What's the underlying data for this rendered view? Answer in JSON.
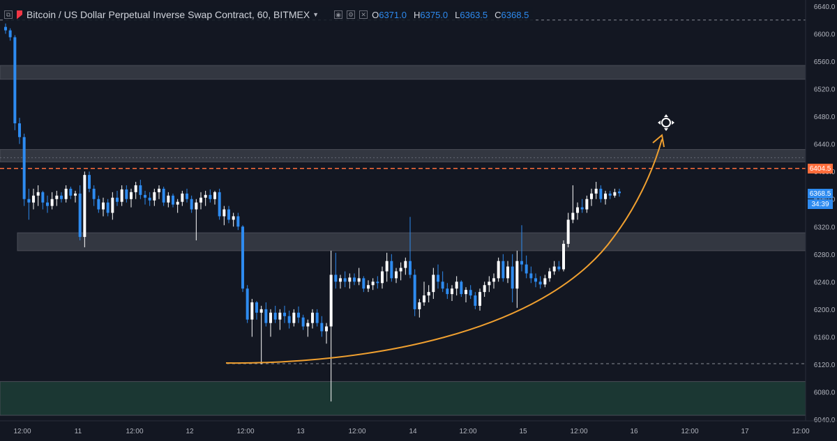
{
  "header": {
    "title": "Bitcoin / US Dollar Perpetual Inverse Swap Contract, 60, BITMEX",
    "ohlc": [
      {
        "key": "O",
        "value": "6371.0"
      },
      {
        "key": "H",
        "value": "6375.0"
      },
      {
        "key": "L",
        "value": "6363.5"
      },
      {
        "key": "C",
        "value": "6368.5"
      }
    ],
    "icons": [
      "collapse-icon",
      "flag-icon",
      "dropdown-caret-icon",
      "settings-icon",
      "eye-icon",
      "close-icon"
    ]
  },
  "price_labels": {
    "level_line": "6404.5",
    "last_price": "6368.5",
    "countdown": "34:39"
  },
  "colors": {
    "background": "#131722",
    "up": "#ffffff",
    "down": "#2e8bf0",
    "level_line": "#ff6d3b",
    "arrow": "#f0a030",
    "zone_gray": "#3a3d47",
    "zone_green": "#1d3d36"
  },
  "chart_data": {
    "type": "candlestick",
    "title": "",
    "xlabel": "",
    "ylabel": "",
    "ylim": [
      6040,
      6640
    ],
    "y_ticks": [
      "6640.0",
      "6600.0",
      "6560.0",
      "6520.0",
      "6480.0",
      "6440.0",
      "6400.0",
      "6360.0",
      "6320.0",
      "6280.0",
      "6240.0",
      "6200.0",
      "6160.0",
      "6120.0",
      "6080.0",
      "6040.0"
    ],
    "x_ticks": [
      "12:00",
      "11",
      "12:00",
      "12",
      "12:00",
      "13",
      "12:00",
      "14",
      "12:00",
      "15",
      "12:00",
      "16",
      "12:00",
      "17",
      "12:00"
    ],
    "grid": false,
    "zones": [
      {
        "from": 6534,
        "to": 6554,
        "kind": "resistance"
      },
      {
        "from": 6414,
        "to": 6432,
        "kind": "resistance"
      },
      {
        "from": 6285,
        "to": 6311,
        "kind": "support"
      },
      {
        "from": 6046,
        "to": 6095,
        "kind": "demand"
      }
    ],
    "dashed_levels": [
      6620,
      6404.5,
      6420,
      6121
    ],
    "candles": [
      [
        6610,
        6615,
        6600,
        6605
      ],
      [
        6605,
        6608,
        6590,
        6595
      ],
      [
        6595,
        6598,
        6460,
        6470
      ],
      [
        6470,
        6478,
        6440,
        6450
      ],
      [
        6450,
        6455,
        6350,
        6360
      ],
      [
        6360,
        6375,
        6330,
        6355
      ],
      [
        6355,
        6375,
        6345,
        6365
      ],
      [
        6365,
        6380,
        6350,
        6370
      ],
      [
        6370,
        6372,
        6345,
        6355
      ],
      [
        6355,
        6365,
        6340,
        6350
      ],
      [
        6350,
        6370,
        6345,
        6360
      ],
      [
        6360,
        6372,
        6350,
        6365
      ],
      [
        6365,
        6370,
        6355,
        6360
      ],
      [
        6360,
        6380,
        6355,
        6375
      ],
      [
        6375,
        6378,
        6360,
        6365
      ],
      [
        6365,
        6372,
        6355,
        6368
      ],
      [
        6368,
        6380,
        6300,
        6305
      ],
      [
        6305,
        6400,
        6290,
        6395
      ],
      [
        6395,
        6400,
        6370,
        6375
      ],
      [
        6375,
        6380,
        6350,
        6360
      ],
      [
        6360,
        6365,
        6340,
        6345
      ],
      [
        6345,
        6362,
        6335,
        6355
      ],
      [
        6355,
        6360,
        6335,
        6340
      ],
      [
        6340,
        6370,
        6330,
        6362
      ],
      [
        6362,
        6372,
        6350,
        6356
      ],
      [
        6356,
        6380,
        6350,
        6374
      ],
      [
        6374,
        6380,
        6355,
        6360
      ],
      [
        6360,
        6375,
        6348,
        6370
      ],
      [
        6370,
        6385,
        6360,
        6380
      ],
      [
        6380,
        6388,
        6360,
        6366
      ],
      [
        6366,
        6372,
        6352,
        6362
      ],
      [
        6362,
        6370,
        6350,
        6358
      ],
      [
        6358,
        6375,
        6350,
        6370
      ],
      [
        6370,
        6380,
        6360,
        6375
      ],
      [
        6375,
        6378,
        6350,
        6355
      ],
      [
        6355,
        6370,
        6348,
        6365
      ],
      [
        6365,
        6368,
        6348,
        6352
      ],
      [
        6352,
        6360,
        6340,
        6356
      ],
      [
        6356,
        6372,
        6350,
        6368
      ],
      [
        6368,
        6375,
        6355,
        6360
      ],
      [
        6360,
        6365,
        6340,
        6345
      ],
      [
        6345,
        6360,
        6300,
        6355
      ],
      [
        6355,
        6370,
        6345,
        6362
      ],
      [
        6362,
        6372,
        6350,
        6366
      ],
      [
        6366,
        6374,
        6355,
        6360
      ],
      [
        6360,
        6372,
        6352,
        6370
      ],
      [
        6370,
        6375,
        6330,
        6335
      ],
      [
        6335,
        6350,
        6322,
        6345
      ],
      [
        6345,
        6350,
        6325,
        6330
      ],
      [
        6330,
        6340,
        6320,
        6335
      ],
      [
        6335,
        6340,
        6315,
        6320
      ],
      [
        6320,
        6322,
        6225,
        6230
      ],
      [
        6230,
        6235,
        6180,
        6185
      ],
      [
        6185,
        6215,
        6160,
        6210
      ],
      [
        6210,
        6212,
        6185,
        6195
      ],
      [
        6195,
        6205,
        6120,
        6200
      ],
      [
        6200,
        6210,
        6175,
        6180
      ],
      [
        6180,
        6200,
        6160,
        6195
      ],
      [
        6195,
        6205,
        6180,
        6185
      ],
      [
        6185,
        6200,
        6170,
        6195
      ],
      [
        6195,
        6205,
        6180,
        6190
      ],
      [
        6190,
        6198,
        6172,
        6180
      ],
      [
        6180,
        6200,
        6175,
        6195
      ],
      [
        6195,
        6204,
        6180,
        6188
      ],
      [
        6188,
        6192,
        6170,
        6175
      ],
      [
        6175,
        6185,
        6160,
        6180
      ],
      [
        6180,
        6200,
        6172,
        6195
      ],
      [
        6195,
        6200,
        6175,
        6180
      ],
      [
        6180,
        6190,
        6160,
        6168
      ],
      [
        6168,
        6180,
        6150,
        6175
      ],
      [
        6175,
        6285,
        6066,
        6250
      ],
      [
        6250,
        6282,
        6230,
        6240
      ],
      [
        6240,
        6250,
        6230,
        6245
      ],
      [
        6245,
        6255,
        6232,
        6240
      ],
      [
        6240,
        6252,
        6230,
        6246
      ],
      [
        6246,
        6252,
        6235,
        6240
      ],
      [
        6240,
        6260,
        6235,
        6245
      ],
      [
        6245,
        6248,
        6225,
        6230
      ],
      [
        6230,
        6242,
        6225,
        6235
      ],
      [
        6235,
        6245,
        6228,
        6240
      ],
      [
        6240,
        6248,
        6230,
        6238
      ],
      [
        6238,
        6262,
        6230,
        6255
      ],
      [
        6255,
        6282,
        6240,
        6270
      ],
      [
        6270,
        6280,
        6240,
        6245
      ],
      [
        6245,
        6260,
        6238,
        6255
      ],
      [
        6255,
        6268,
        6242,
        6260
      ],
      [
        6260,
        6275,
        6250,
        6270
      ],
      [
        6270,
        6334,
        6245,
        6250
      ],
      [
        6250,
        6258,
        6190,
        6200
      ],
      [
        6200,
        6215,
        6188,
        6210
      ],
      [
        6210,
        6240,
        6205,
        6220
      ],
      [
        6220,
        6235,
        6210,
        6225
      ],
      [
        6225,
        6260,
        6215,
        6250
      ],
      [
        6250,
        6265,
        6230,
        6240
      ],
      [
        6240,
        6255,
        6225,
        6230
      ],
      [
        6230,
        6238,
        6215,
        6222
      ],
      [
        6222,
        6235,
        6212,
        6230
      ],
      [
        6230,
        6248,
        6220,
        6240
      ],
      [
        6240,
        6242,
        6218,
        6222
      ],
      [
        6222,
        6232,
        6210,
        6228
      ],
      [
        6228,
        6235,
        6215,
        6220
      ],
      [
        6220,
        6225,
        6200,
        6205
      ],
      [
        6205,
        6230,
        6198,
        6225
      ],
      [
        6225,
        6240,
        6218,
        6235
      ],
      [
        6235,
        6248,
        6225,
        6240
      ],
      [
        6240,
        6252,
        6230,
        6245
      ],
      [
        6245,
        6275,
        6240,
        6270
      ],
      [
        6270,
        6280,
        6240,
        6245
      ],
      [
        6245,
        6270,
        6238,
        6262
      ],
      [
        6262,
        6280,
        6210,
        6230
      ],
      [
        6230,
        6285,
        6202,
        6270
      ],
      [
        6270,
        6322,
        6255,
        6265
      ],
      [
        6265,
        6278,
        6245,
        6252
      ],
      [
        6252,
        6262,
        6238,
        6245
      ],
      [
        6245,
        6252,
        6232,
        6240
      ],
      [
        6240,
        6248,
        6230,
        6236
      ],
      [
        6236,
        6250,
        6232,
        6245
      ],
      [
        6245,
        6260,
        6240,
        6255
      ],
      [
        6255,
        6270,
        6250,
        6262
      ],
      [
        6262,
        6270,
        6255,
        6258
      ],
      [
        6258,
        6300,
        6255,
        6295
      ],
      [
        6295,
        6340,
        6290,
        6330
      ],
      [
        6330,
        6380,
        6325,
        6340
      ],
      [
        6340,
        6355,
        6330,
        6348
      ],
      [
        6348,
        6360,
        6340,
        6345
      ],
      [
        6345,
        6365,
        6340,
        6360
      ],
      [
        6360,
        6375,
        6350,
        6368
      ],
      [
        6368,
        6385,
        6360,
        6375
      ],
      [
        6375,
        6380,
        6355,
        6360
      ],
      [
        6360,
        6372,
        6352,
        6368
      ],
      [
        6368,
        6372,
        6360,
        6365
      ],
      [
        6365,
        6375,
        6362,
        6370
      ],
      [
        6371,
        6375,
        6363.5,
        6368.5
      ]
    ]
  }
}
